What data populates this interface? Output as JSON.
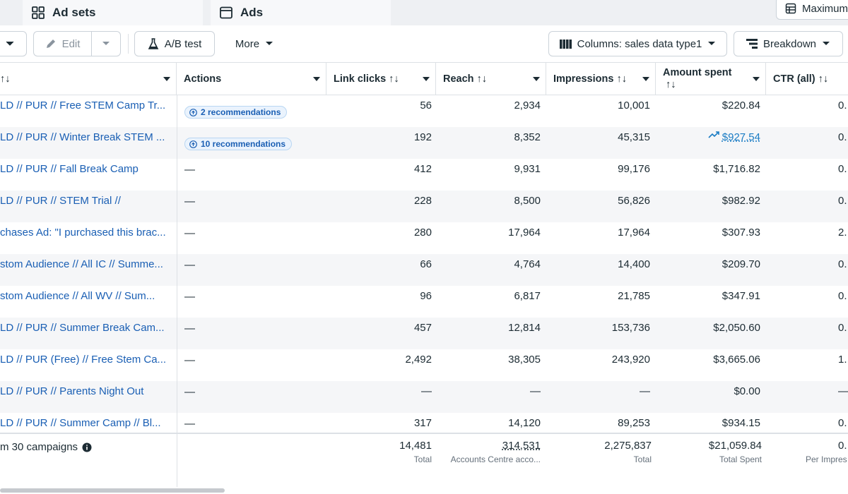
{
  "tabs": {
    "adsets_label": "Ad sets",
    "ads_label": "Ads",
    "maximum_label": "Maximum"
  },
  "toolbar": {
    "edit_label": "Edit",
    "ab_test_label": "A/B test",
    "more_label": "More",
    "columns_label": "Columns: sales data type1",
    "breakdown_label": "Breakdown"
  },
  "columns": {
    "name_sort": "↑↓",
    "actions": "Actions",
    "link_clicks": "Link clicks ↑↓",
    "reach": "Reach ↑↓",
    "impressions": "Impressions ↑↓",
    "amount_spent_line1": "Amount spent",
    "amount_spent_line2": "↑↓",
    "ctr": "CTR (all) ↑↓"
  },
  "rows": [
    {
      "name": "LD // PUR // Free STEM Camp Tr...",
      "actions": "2 recommendations",
      "link_clicks": "56",
      "reach": "2,934",
      "impressions": "10,001",
      "amount_spent": "$220.84",
      "ctr": "0."
    },
    {
      "name": "LD // PUR // Winter Break STEM ...",
      "actions": "10 recommendations",
      "link_clicks": "192",
      "reach": "8,352",
      "impressions": "45,315",
      "amount_spent": "$927.54",
      "ctr": "0."
    },
    {
      "name": "LD // PUR // Fall Break Camp",
      "actions": "—",
      "link_clicks": "412",
      "reach": "9,931",
      "impressions": "99,176",
      "amount_spent": "$1,716.82",
      "ctr": "0."
    },
    {
      "name": "LD // PUR // STEM Trial //",
      "actions": "—",
      "link_clicks": "228",
      "reach": "8,500",
      "impressions": "56,826",
      "amount_spent": "$982.92",
      "ctr": "0."
    },
    {
      "name": "chases Ad: \"I purchased this brac...",
      "actions": "—",
      "link_clicks": "280",
      "reach": "17,964",
      "impressions": "17,964",
      "amount_spent": "$307.93",
      "ctr": "2."
    },
    {
      "name": "stom Audience // All IC // Summe...",
      "actions": "—",
      "link_clicks": "66",
      "reach": "4,764",
      "impressions": "14,400",
      "amount_spent": "$209.70",
      "ctr": "0."
    },
    {
      "name": "stom Audience // All WV // Sum...",
      "actions": "—",
      "link_clicks": "96",
      "reach": "6,817",
      "impressions": "21,785",
      "amount_spent": "$347.91",
      "ctr": "0."
    },
    {
      "name": "LD // PUR // Summer Break Cam...",
      "actions": "—",
      "link_clicks": "457",
      "reach": "12,814",
      "impressions": "153,736",
      "amount_spent": "$2,050.60",
      "ctr": "0."
    },
    {
      "name": "LD // PUR (Free) // Free Stem Ca...",
      "actions": "—",
      "link_clicks": "2,492",
      "reach": "38,305",
      "impressions": "243,920",
      "amount_spent": "$3,665.06",
      "ctr": "1."
    },
    {
      "name": "LD // PUR // Parents Night Out",
      "actions": "—",
      "link_clicks": "—",
      "reach": "—",
      "impressions": "—",
      "amount_spent": "$0.00",
      "ctr": "—"
    },
    {
      "name": "LD // PUR // Summer Camp // Bl...",
      "actions": "—",
      "link_clicks": "317",
      "reach": "14,120",
      "impressions": "89,253",
      "amount_spent": "$934.15",
      "ctr": "0."
    }
  ],
  "totals": {
    "label": "m 30 campaigns",
    "link_clicks": "14,481",
    "link_clicks_sub": "Total",
    "reach": "314,531",
    "reach_sub": "Accounts Centre acco...",
    "impressions": "2,275,837",
    "impressions_sub": "Total",
    "amount_spent": "$21,059.84",
    "amount_spent_sub": "Total Spent",
    "ctr": "0.",
    "ctr_sub": "Per Impres"
  },
  "colors": {
    "link_blue": "#1a5fb4",
    "text_primary": "#1c2b33",
    "row_alt": "#f5f6f8",
    "border": "#dde1e5"
  }
}
